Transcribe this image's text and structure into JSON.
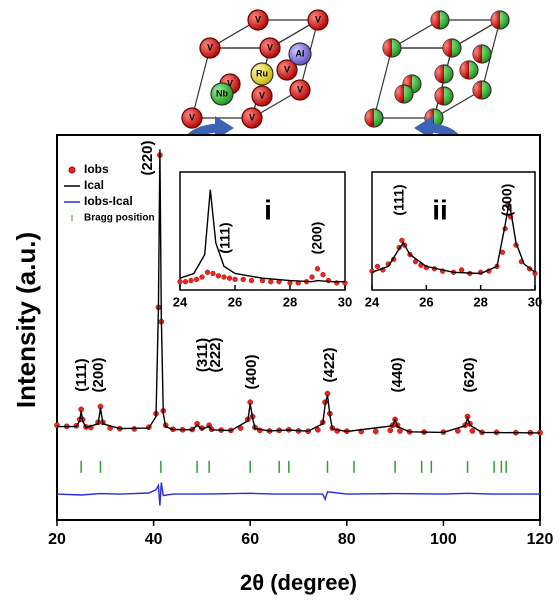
{
  "chart_data": [
    {
      "type": "line",
      "xlabel": "2θ (degree)",
      "ylabel": "Intensity (a.u.)",
      "xlim": [
        20,
        120
      ],
      "xticks": [
        20,
        40,
        60,
        80,
        100,
        120
      ],
      "ylim": [
        -29,
        105
      ],
      "series": [
        {
          "name": "Iobs",
          "style": "points",
          "color": "#e8281e",
          "x": [
            20,
            22,
            24,
            24.7,
            25,
            25.3,
            26,
            27,
            28.5,
            29,
            29.5,
            31,
            33,
            36,
            39,
            40.5,
            41,
            41.3,
            41.6,
            42,
            42.5,
            44,
            46,
            48,
            49,
            50,
            51.5,
            52,
            54,
            56,
            58,
            59.5,
            60,
            60.5,
            61,
            62,
            64,
            66,
            68,
            70,
            72,
            74,
            75,
            75.5,
            76,
            76.5,
            77,
            78,
            80,
            83,
            86,
            89,
            89.5,
            90,
            90.5,
            91,
            93,
            96,
            100,
            103,
            104.5,
            105,
            105.5,
            106,
            108,
            111,
            115,
            118,
            120
          ],
          "values": [
            4,
            3.6,
            3.8,
            6,
            9.5,
            6,
            3.4,
            3.2,
            5,
            10.5,
            5,
            3,
            2.8,
            2.7,
            3.3,
            8,
            45,
            98,
            40,
            9,
            4,
            2.6,
            2.4,
            2.5,
            4.5,
            3,
            4,
            2.6,
            2.3,
            2.2,
            3,
            6,
            12,
            7,
            3.2,
            2.2,
            2,
            2.2,
            2.4,
            2,
            1.9,
            2.4,
            5,
            12,
            15,
            8,
            3,
            2,
            1.9,
            1.8,
            1.8,
            2.2,
            4,
            6,
            4,
            2,
            1.7,
            1.6,
            1.6,
            2,
            4,
            7,
            4.5,
            2,
            1.5,
            1.5,
            1.4,
            1.4,
            1.4
          ]
        },
        {
          "name": "Ical",
          "style": "line",
          "color": "#000000",
          "x": [
            20,
            24,
            24.7,
            25,
            25.3,
            26,
            28.5,
            29,
            29.5,
            33,
            39,
            40.5,
            41,
            41.3,
            41.6,
            42,
            42.5,
            44,
            48,
            49,
            50,
            51.5,
            52,
            56,
            59.5,
            60,
            60.5,
            61,
            64,
            66,
            68,
            72,
            75,
            75.5,
            76,
            76.5,
            77,
            80,
            89.5,
            90,
            90.5,
            93,
            100,
            104.5,
            105,
            105.5,
            108,
            115,
            120
          ],
          "values": [
            3.5,
            3.5,
            5.5,
            9,
            5.5,
            3.2,
            4.5,
            10,
            4.5,
            2.8,
            3,
            7,
            44,
            100,
            42,
            8,
            3.5,
            2.5,
            2.4,
            4,
            2.6,
            3.6,
            2.4,
            2.1,
            5.5,
            11.5,
            6.5,
            2.8,
            2,
            2.2,
            2.3,
            1.9,
            4.5,
            11,
            14.5,
            7.5,
            2.7,
            1.8,
            3.8,
            5.8,
            3.5,
            1.7,
            1.5,
            3.8,
            6.5,
            4,
            1.5,
            1.4,
            1.3
          ]
        },
        {
          "name": "Iobs-Ical",
          "style": "line",
          "color": "#2b2bd8",
          "x": [
            20,
            25,
            29,
            33,
            39,
            40.5,
            41,
            41.3,
            41.6,
            42,
            44,
            50,
            60,
            65,
            75,
            75.5,
            76,
            80,
            90,
            100,
            105,
            110,
            120
          ],
          "values": [
            -20,
            -20.3,
            -19.8,
            -20,
            -19.6,
            -18.5,
            -17,
            -24,
            -16,
            -20.5,
            -20,
            -20,
            -19.7,
            -20,
            -20,
            -21.8,
            -19.2,
            -20,
            -19.8,
            -20,
            -19.7,
            -20,
            -20
          ]
        },
        {
          "name": "Bragg position",
          "style": "ticks",
          "color": "#2ca02c",
          "x": [
            25,
            29,
            41.5,
            49,
            51.5,
            60,
            66,
            68,
            76,
            81.5,
            90,
            95.5,
            97.5,
            105,
            110.5,
            112,
            113
          ],
          "values": [
            -10.5,
            -10.5,
            -10.5,
            -10.5,
            -10.5,
            -10.5,
            -10.5,
            -10.5,
            -10.5,
            -10.5,
            -10.5,
            -10.5,
            -10.5,
            -10.5,
            -10.5,
            -10.5,
            -10.5
          ]
        }
      ],
      "peaks": [
        {
          "label": "(111)",
          "x": 25
        },
        {
          "label": "(200)",
          "x": 29
        },
        {
          "label": "(220)",
          "x": 41.5
        },
        {
          "label": "(311)",
          "x": 49
        },
        {
          "label": "(222)",
          "x": 51.5
        },
        {
          "label": "(400)",
          "x": 60
        },
        {
          "label": "(422)",
          "x": 76
        },
        {
          "label": "(440)",
          "x": 90
        },
        {
          "label": "(620)",
          "x": 105
        }
      ]
    },
    {
      "type": "line",
      "inset_label": "i",
      "xlim": [
        24,
        30
      ],
      "xticks": [
        24,
        26,
        28,
        30
      ],
      "ylim": [
        0,
        100
      ],
      "series": [
        {
          "style": "points",
          "color": "#e8281e",
          "x": [
            24,
            24.2,
            24.4,
            24.6,
            24.8,
            25,
            25.2,
            25.4,
            25.6,
            25.8,
            26,
            26.3,
            26.6,
            27,
            27.3,
            27.6,
            28,
            28.3,
            28.6,
            28.8,
            29,
            29.2,
            29.4,
            29.7,
            30
          ],
          "values": [
            7,
            7,
            8,
            9,
            11,
            15,
            14,
            12,
            11,
            10,
            9,
            9,
            8,
            8,
            7,
            7,
            6,
            6,
            7,
            11,
            18,
            13,
            8,
            6,
            6
          ]
        },
        {
          "style": "line",
          "color": "#000000",
          "x": [
            24,
            24.5,
            24.9,
            25.1,
            25.3,
            25.6,
            26,
            27,
            28,
            28.8,
            29,
            29.5,
            30
          ],
          "values": [
            10,
            14,
            30,
            85,
            40,
            20,
            14,
            10,
            8,
            7,
            8,
            7,
            7
          ]
        }
      ],
      "peaks": [
        {
          "label": "(111)",
          "x": 25.1
        },
        {
          "label": "(200)",
          "x": 29
        }
      ]
    },
    {
      "type": "line",
      "inset_label": "ii",
      "xlim": [
        24,
        30
      ],
      "xticks": [
        24,
        26,
        28,
        30
      ],
      "ylim": [
        0,
        100
      ],
      "series": [
        {
          "style": "points",
          "color": "#e8281e",
          "x": [
            24,
            24.2,
            24.4,
            24.6,
            24.8,
            25,
            25.1,
            25.2,
            25.4,
            25.6,
            25.8,
            26,
            26.3,
            26.6,
            27,
            27.3,
            27.6,
            28,
            28.3,
            28.6,
            28.8,
            28.9,
            29,
            29.1,
            29.3,
            29.5,
            29.8,
            30
          ],
          "values": [
            16,
            20,
            17,
            22,
            26,
            36,
            42,
            38,
            30,
            24,
            21,
            19,
            18,
            16,
            15,
            17,
            14,
            15,
            16,
            20,
            32,
            52,
            72,
            62,
            38,
            24,
            18,
            14
          ]
        },
        {
          "style": "line",
          "color": "#000000",
          "x": [
            24,
            24.6,
            25,
            25.15,
            25.4,
            26,
            27,
            28,
            28.6,
            28.9,
            29.05,
            29.3,
            29.6,
            30
          ],
          "values": [
            15,
            20,
            35,
            40,
            30,
            20,
            15,
            14,
            20,
            55,
            75,
            40,
            22,
            15
          ]
        }
      ],
      "peaks": [
        {
          "label": "(111)",
          "x": 25.1
        },
        {
          "label": "(200)",
          "x": 29
        }
      ]
    }
  ],
  "crystal": {
    "atoms": [
      "V",
      "Al",
      "Ru",
      "Nb"
    ]
  }
}
